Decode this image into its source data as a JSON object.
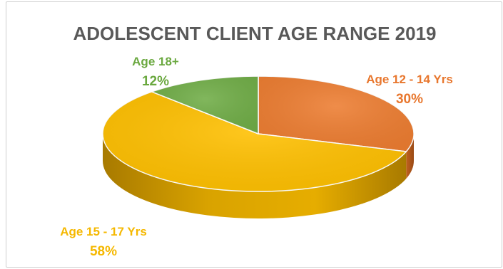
{
  "chart_data": {
    "type": "pie",
    "title": "ADOLESCENT CLIENT AGE RANGE 2019",
    "slices": [
      {
        "label": "Age 12 - 14 Yrs",
        "percent_label": "30%",
        "value": 30,
        "color": "#ed7d31"
      },
      {
        "label": "Age 15 - 17 Yrs",
        "percent_label": "58%",
        "value": 58,
        "color": "#ffc000"
      },
      {
        "label": "Age 18+",
        "percent_label": "12%",
        "value": 12,
        "color": "#70ad47"
      }
    ],
    "style": "3d"
  }
}
